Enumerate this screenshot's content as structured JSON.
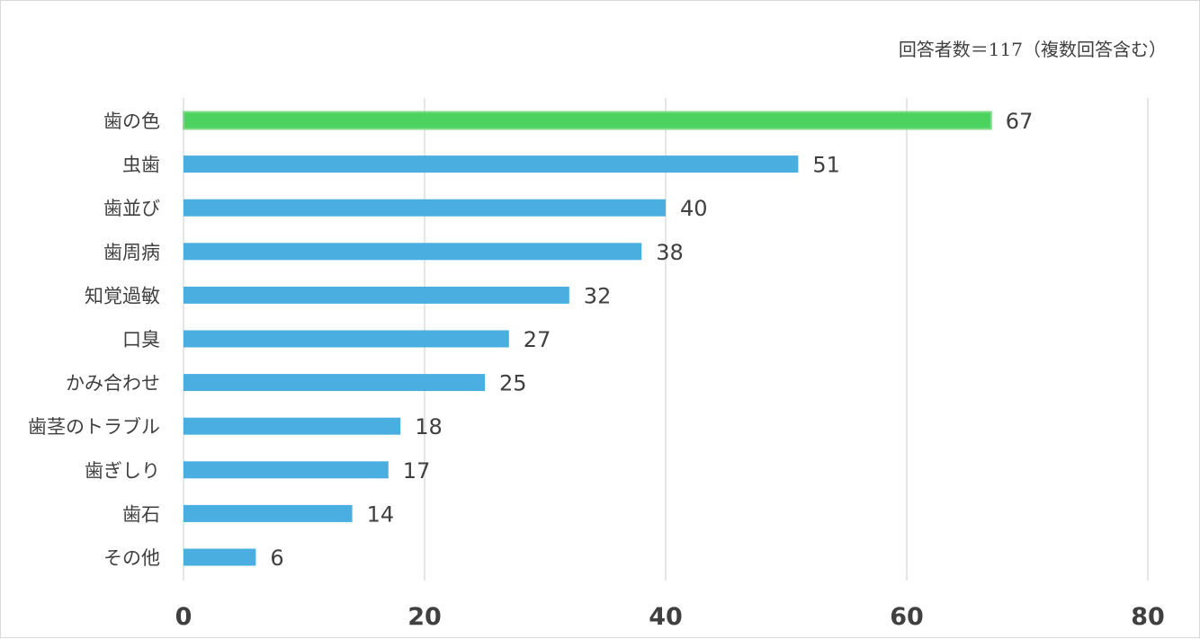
{
  "chart_data": {
    "type": "bar",
    "orientation": "horizontal",
    "annotation": "回答者数＝117（複数回答含む）",
    "categories": [
      "歯の色",
      "虫歯",
      "歯並び",
      "歯周病",
      "知覚過敏",
      "口臭",
      "かみ合わせ",
      "歯茎のトラブル",
      "歯ぎしり",
      "歯石",
      "その他"
    ],
    "values": [
      67,
      51,
      40,
      38,
      32,
      27,
      25,
      18,
      17,
      14,
      6
    ],
    "highlight_index": 0,
    "xlim": [
      0,
      80
    ],
    "xticks": [
      "0",
      "20",
      "40",
      "60",
      "80"
    ],
    "grid": "vertical",
    "legend": "none",
    "colors": {
      "bar": "#4aafe0",
      "highlight": "#4cd35f",
      "grid": "#d9d9d9",
      "text": "#404040"
    }
  }
}
